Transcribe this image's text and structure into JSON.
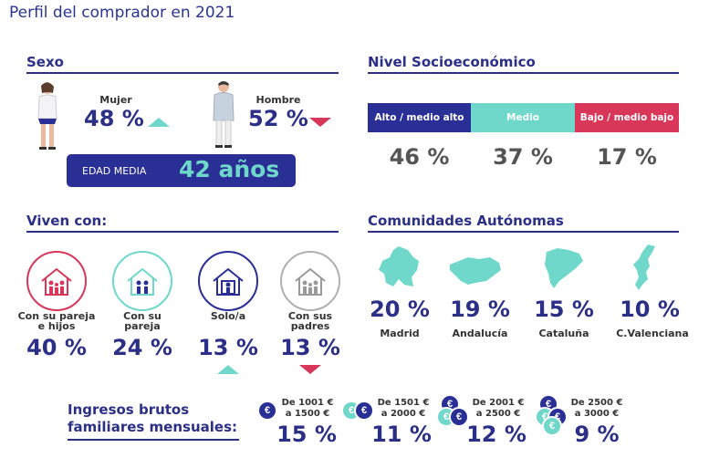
{
  "page": {
    "title": "Perfil del comprador en 2021"
  },
  "sexo": {
    "heading": "Sexo",
    "mujer": {
      "label": "Mujer",
      "value": "48 %",
      "trend": "up"
    },
    "hombre": {
      "label": "Hombre",
      "value": "52 %",
      "trend": "down"
    },
    "edad_label": "EDAD MEDIA",
    "edad_value": "42 años"
  },
  "nse": {
    "heading": "Nivel Socioeconómico",
    "segments": [
      {
        "label": "Alto / medio alto",
        "value": "46 %",
        "color": "#2a2f95"
      },
      {
        "label": "Medio",
        "value": "37 %",
        "color": "#6fd8cb"
      },
      {
        "label": "Bajo / medio bajo",
        "value": "17 %",
        "color": "#d8375a"
      }
    ]
  },
  "viven": {
    "heading": "Viven con:",
    "items": [
      {
        "label_1": "Con su pareja",
        "label_2": "e hijos",
        "value": "40 %",
        "color": "#d8375a",
        "icon": "family-house-icon"
      },
      {
        "label_1": "Con su",
        "label_2": "pareja",
        "value": "24 %",
        "color": "#6fd8cb",
        "icon": "couple-house-icon"
      },
      {
        "label_1": "Solo/a",
        "label_2": "",
        "value": "13 %",
        "color": "#2a2f95",
        "icon": "single-house-icon",
        "trend": "up"
      },
      {
        "label_1": "Con sus",
        "label_2": "padres",
        "value": "13 %",
        "color": "#b0b0b0",
        "icon": "parents-house-icon",
        "trend": "down"
      }
    ]
  },
  "ccaa": {
    "heading": "Comunidades Autónomas",
    "items": [
      {
        "value": "20 %",
        "label": "Madrid",
        "icon": "madrid-map-icon"
      },
      {
        "value": "19 %",
        "label": "Andalucía",
        "icon": "andalucia-map-icon"
      },
      {
        "value": "15 %",
        "label": "Cataluña",
        "icon": "cataluna-map-icon"
      },
      {
        "value": "10 %",
        "label": "C.Valenciana",
        "icon": "valenciana-map-icon"
      }
    ]
  },
  "ingresos": {
    "heading_1": "Ingresos brutos",
    "heading_2": "familiares mensuales:",
    "currency_symbol": "€",
    "items": [
      {
        "range_1": "De 1001 €",
        "range_2": "a 1500 €",
        "value": "15 %"
      },
      {
        "range_1": "De 1501 €",
        "range_2": "a 2000 €",
        "value": "11 %"
      },
      {
        "range_1": "De 2001 €",
        "range_2": "a 2500 €",
        "value": "12 %"
      },
      {
        "range_1": "De 2500 €",
        "range_2": "a 3000 €",
        "value": "9 %"
      }
    ]
  },
  "colors": {
    "navy": "#2a2f95",
    "teal": "#6fd8cb",
    "red": "#d8375a"
  }
}
